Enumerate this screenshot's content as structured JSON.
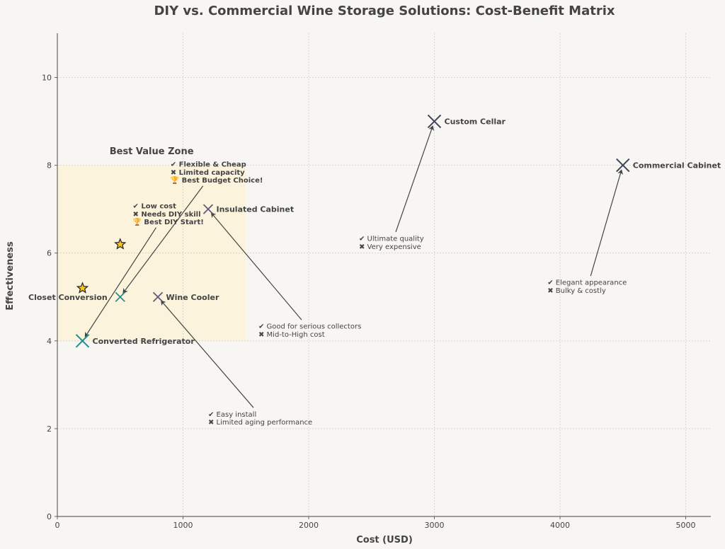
{
  "chart_data": {
    "type": "scatter",
    "title": "DIY vs. Commercial Wine Storage Solutions: Cost-Benefit Matrix",
    "xlabel": "Cost (USD)",
    "ylabel": "Effectiveness",
    "xlim": [
      0,
      5200
    ],
    "ylim": [
      0,
      11
    ],
    "xticks": [
      0,
      1000,
      2000,
      3000,
      4000,
      5000
    ],
    "yticks": [
      0,
      2,
      4,
      6,
      8,
      10
    ],
    "grid": true,
    "colors": {
      "background": "#f8f6f2",
      "diy": "#2a8c8c",
      "commercial": "#3d4663",
      "mid": "#5f5a7a",
      "zone": "#fcf3dc",
      "star": "#f5c518",
      "text": "#444444",
      "grid": "#cfcfcf"
    },
    "highlight_zone": {
      "label": "Best Value Zone",
      "x": [
        0,
        1500
      ],
      "y": [
        4,
        8
      ]
    },
    "points": [
      {
        "name": "Converted Refrigerator",
        "x": 200,
        "y": 4,
        "group": "diy",
        "size": "large"
      },
      {
        "name": "Closet Conversion",
        "x": 500,
        "y": 5,
        "group": "diy",
        "size": "small",
        "label_side": "left"
      },
      {
        "name": "Wine Cooler",
        "x": 800,
        "y": 5,
        "group": "mid",
        "size": "small"
      },
      {
        "name": "Insulated Cabinet",
        "x": 1200,
        "y": 7,
        "group": "mid",
        "size": "small"
      },
      {
        "name": "Custom Cellar",
        "x": 3000,
        "y": 9,
        "group": "commercial",
        "size": "large"
      },
      {
        "name": "Commercial Cabinet",
        "x": 4500,
        "y": 8,
        "group": "commercial",
        "size": "large"
      }
    ],
    "stars": [
      {
        "x": 200,
        "y": 5.2
      },
      {
        "x": 500,
        "y": 6.2
      }
    ],
    "annotations": [
      {
        "target": "Converted Refrigerator",
        "text_x": 600,
        "text_y": 6.9,
        "bold": true,
        "lines": [
          "✔ Low cost",
          "✖ Needs DIY skill",
          "🏆 Best DIY Start!"
        ]
      },
      {
        "target": "Closet Conversion",
        "text_x": 900,
        "text_y": 7.85,
        "bold": true,
        "lines": [
          "✔ Flexible & Cheap",
          "✖ Limited capacity",
          "🏆 Best Budget Choice!"
        ]
      },
      {
        "target": "Wine Cooler",
        "text_x": 1200,
        "text_y": 2.25,
        "bold": false,
        "lines": [
          "✔ Easy install",
          "✖ Limited aging performance"
        ]
      },
      {
        "target": "Insulated Cabinet",
        "text_x": 1600,
        "text_y": 4.25,
        "bold": false,
        "lines": [
          "✔ Good for serious collectors",
          "✖ Mid-to-High cost"
        ]
      },
      {
        "target": "Custom Cellar",
        "text_x": 2400,
        "text_y": 6.25,
        "bold": false,
        "lines": [
          "✔ Ultimate quality",
          "✖ Very expensive"
        ]
      },
      {
        "target": "Commercial Cabinet",
        "text_x": 3900,
        "text_y": 5.25,
        "bold": false,
        "lines": [
          "✔ Elegant appearance",
          "✖ Bulky & costly"
        ]
      }
    ]
  }
}
